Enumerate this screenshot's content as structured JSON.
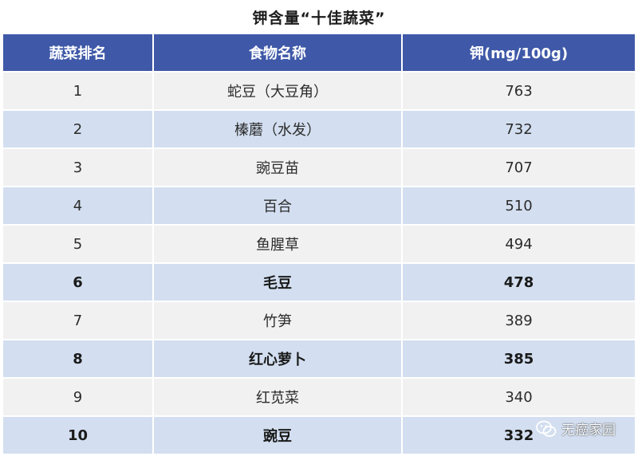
{
  "title": "钾含量“十佳蔬菜”",
  "table": {
    "headers": [
      "蔬菜排名",
      "食物名称",
      "钾(mg/100g)"
    ],
    "rows": [
      {
        "rank": "1",
        "food": "蛇豆（大豆角）",
        "potassium": "763"
      },
      {
        "rank": "2",
        "food": "榛蘑（水发）",
        "potassium": "732"
      },
      {
        "rank": "3",
        "food": "豌豆苗",
        "potassium": "707"
      },
      {
        "rank": "4",
        "food": "百合",
        "potassium": "510"
      },
      {
        "rank": "5",
        "food": "鱼腥草",
        "potassium": "494"
      },
      {
        "rank": "6",
        "food": "毛豆",
        "potassium": "478"
      },
      {
        "rank": "7",
        "food": "竹笋",
        "potassium": "389"
      },
      {
        "rank": "8",
        "food": "红心萝卜",
        "potassium": "385"
      },
      {
        "rank": "9",
        "food": "红苋菜",
        "potassium": "340"
      },
      {
        "rank": "10",
        "food": "豌豆",
        "potassium": "332"
      }
    ]
  },
  "watermark": {
    "icon": "wechat-icon",
    "text": "无癌家园"
  },
  "colors": {
    "header_bg": "#3f59a8",
    "row_light": "#f1f1f1",
    "row_blue": "#d3dff0"
  }
}
